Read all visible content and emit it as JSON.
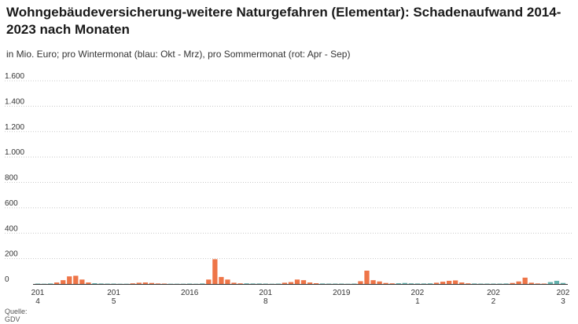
{
  "header": {
    "title": "Wohngebäudeversicherung-weitere Naturgefahren (Elementar): Schadenaufwand 2014-2023 nach Monaten",
    "subtitle": "in Mio. Euro; pro Wintermonat (blau: Okt - Mrz), pro Sommermonat (rot: Apr - Sep)"
  },
  "footer": {
    "source_label": "Quelle:",
    "source_name": "GDV"
  },
  "colors": {
    "summer": "#ee7548",
    "winter": "#63b2ad",
    "gridline": "#c8c8c8",
    "baseline": "#333333"
  },
  "chart_data": {
    "type": "bar",
    "title": "Wohngebäudeversicherung-weitere Naturgefahren (Elementar): Schadenaufwand 2014-2023 nach Monaten",
    "xlabel": "",
    "ylabel": "",
    "ylim": [
      0,
      1600
    ],
    "yticks": [
      {
        "value": 0,
        "label": "0"
      },
      {
        "value": 200,
        "label": "200"
      },
      {
        "value": 400,
        "label": "400"
      },
      {
        "value": 600,
        "label": "600"
      },
      {
        "value": 800,
        "label": "800"
      },
      {
        "value": 1000,
        "label": "1.000"
      },
      {
        "value": 1200,
        "label": "1.200"
      },
      {
        "value": 1400,
        "label": "1.400"
      },
      {
        "value": 1600,
        "label": "1.600"
      }
    ],
    "grid": true,
    "start_period": "2014-01",
    "x_tick_labels": [
      {
        "month_index": 0,
        "lines": [
          "201",
          "4"
        ]
      },
      {
        "month_index": 12,
        "lines": [
          "201",
          "5"
        ]
      },
      {
        "month_index": 24,
        "lines": [
          "2016"
        ]
      },
      {
        "month_index": 36,
        "lines": [
          "201",
          "8"
        ]
      },
      {
        "month_index": 48,
        "lines": [
          "2019"
        ]
      },
      {
        "month_index": 60,
        "lines": [
          "202",
          "1"
        ]
      },
      {
        "month_index": 72,
        "lines": [
          "202",
          "2"
        ]
      },
      {
        "month_index": 83,
        "lines": [
          "202",
          "3"
        ]
      }
    ],
    "series": [
      {
        "key": "monthly_damage",
        "values": [
          3,
          2,
          4,
          12,
          30,
          60,
          65,
          35,
          12,
          6,
          4,
          3,
          3,
          2,
          2,
          5,
          10,
          12,
          8,
          4,
          3,
          2,
          2,
          2,
          3,
          2,
          4,
          35,
          195,
          55,
          35,
          10,
          5,
          5,
          4,
          4,
          3,
          2,
          3,
          10,
          15,
          35,
          30,
          12,
          6,
          4,
          3,
          3,
          3,
          2,
          3,
          22,
          105,
          30,
          20,
          8,
          5,
          6,
          8,
          5,
          4,
          4,
          5,
          10,
          18,
          25,
          28,
          12,
          5,
          4,
          3,
          3,
          3,
          3,
          4,
          8,
          20,
          50,
          10,
          4,
          3,
          15,
          25,
          8
        ]
      }
    ]
  }
}
